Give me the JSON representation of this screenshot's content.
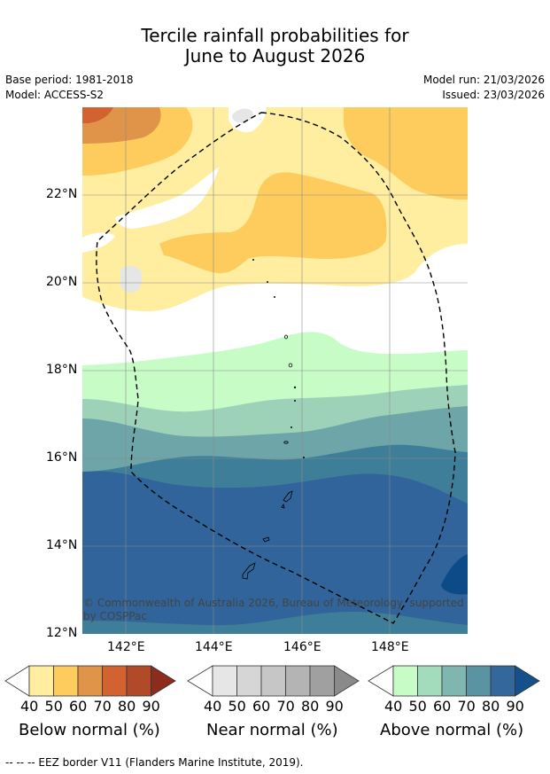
{
  "title": {
    "line1": "Tercile rainfall probabilities for",
    "line2": "June to August 2026"
  },
  "meta": {
    "base_period": "Base period: 1981-2018",
    "model": "Model: ACCESS-S2",
    "model_run": "Model run: 21/03/2026",
    "issued": "Issued: 23/03/2026"
  },
  "map": {
    "lat_labels": [
      "22°N",
      "20°N",
      "18°N",
      "16°N",
      "14°N",
      "12°N"
    ],
    "lon_labels": [
      "142°E",
      "144°E",
      "146°E",
      "148°E"
    ],
    "copyright_line1": "© Commonwealth of Australia 2026, Bureau of Meteorology, supported",
    "copyright_line2": "by COSPPac",
    "colors": {
      "below40": "#ffeda0",
      "below50": "#fecc5c",
      "below60": "#e0944a",
      "below70": "#d2622f",
      "below80": "#b04a28",
      "below90": "#8c2c1c",
      "above40": "#c7fcc6",
      "above50": "#9ed2b8",
      "above60": "#6da5a8",
      "above70": "#3f7e99",
      "above80": "#30649a",
      "above90": "#0d4a88",
      "near40": "#e6e6e6"
    }
  },
  "colorbars": {
    "below": {
      "title": "Below normal (%)",
      "ticks": [
        "40",
        "50",
        "60",
        "70",
        "80",
        "90"
      ],
      "colors": [
        "#ffeda0",
        "#fecc5c",
        "#e0944a",
        "#d2622f",
        "#b04a28",
        "#8c2c1c"
      ]
    },
    "near": {
      "title": "Near normal (%)",
      "ticks": [
        "40",
        "50",
        "60",
        "70",
        "80",
        "90"
      ],
      "colors": [
        "#e6e6e6",
        "#d6d6d6",
        "#c6c6c6",
        "#b4b4b4",
        "#a0a0a0",
        "#8a8a8a"
      ]
    },
    "above": {
      "title": "Above normal (%)",
      "ticks": [
        "40",
        "50",
        "60",
        "70",
        "80",
        "90"
      ],
      "colors": [
        "#c7fcc6",
        "#a3dbbd",
        "#7fb7b0",
        "#5a94a2",
        "#34679b",
        "#14508a"
      ]
    }
  },
  "footnote": "--  --  -- EEZ border V11 (Flanders Marine Institute, 2019)."
}
